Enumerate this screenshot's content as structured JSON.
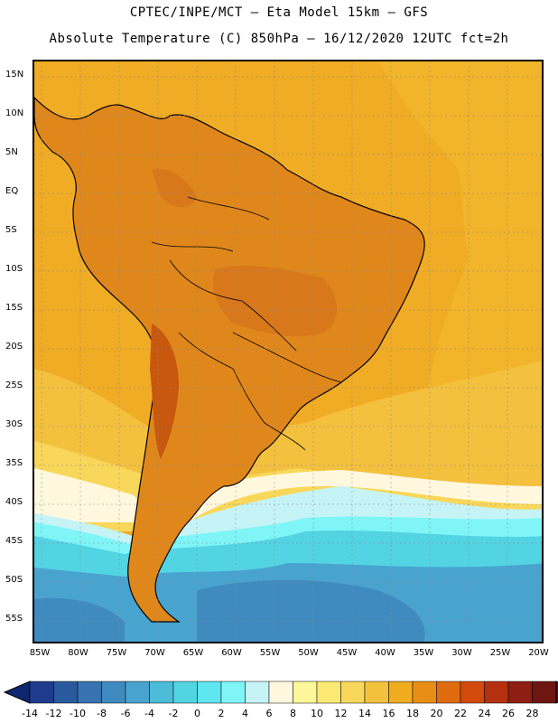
{
  "header": {
    "line1": "CPTEC/INPE/MCT –  Eta Model 15km – GFS",
    "line2": "Absolute Temperature (C) 850hPa – 16/12/2020 12UTC fct=2h"
  },
  "axes": {
    "lat_labels": [
      "15N",
      "10N",
      "5N",
      "EQ",
      "5S",
      "10S",
      "15S",
      "20S",
      "25S",
      "30S",
      "35S",
      "40S",
      "45S",
      "50S",
      "55S"
    ],
    "lon_labels": [
      "85W",
      "80W",
      "75W",
      "70W",
      "65W",
      "60W",
      "55W",
      "50W",
      "45W",
      "40W",
      "35W",
      "30W",
      "25W",
      "20W"
    ]
  },
  "colorbar": {
    "labels": [
      "-14",
      "-12",
      "-10",
      "-8",
      "-6",
      "-4",
      "-2",
      "0",
      "2",
      "4",
      "6",
      "8",
      "10",
      "12",
      "14",
      "16",
      "18",
      "20",
      "22",
      "24",
      "26",
      "28"
    ],
    "colors": [
      "#1e3c8c",
      "#2a5a9e",
      "#3673b0",
      "#3f8bc0",
      "#49a3cf",
      "#4cbcd9",
      "#53d4e3",
      "#5fe6ee",
      "#7ff5f7",
      "#c6f4f6",
      "#fff8de",
      "#fdf69a",
      "#fbe973",
      "#f8d75a",
      "#f4c13e",
      "#f0ab1f",
      "#e88d16",
      "#e06b0e",
      "#d24a0c",
      "#b4300f",
      "#8e1e12",
      "#6e1612"
    ],
    "under_color": "#0f2770",
    "over_color": "#600a1a"
  },
  "legend_colors": {
    "land_hot": "#d8781a",
    "ocean_warm": "#f0ac24",
    "ocean_mid": "#f7d458",
    "cold": "#3c9bd0"
  }
}
